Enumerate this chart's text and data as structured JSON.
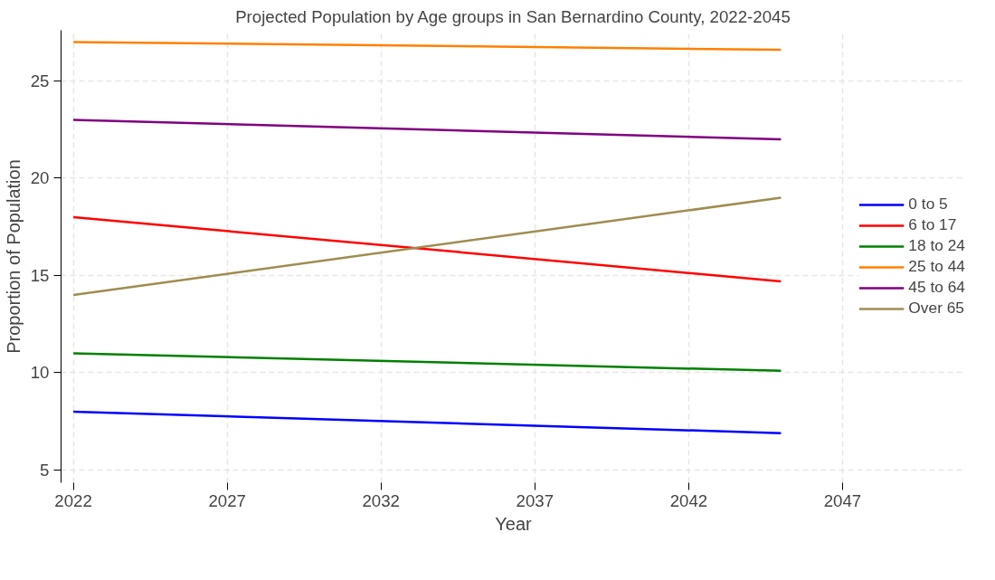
{
  "chart_data": {
    "type": "line",
    "title": "Projected Population by Age groups in San Bernardino County, 2022-2045",
    "xlabel": "Year",
    "ylabel": "Proportion of Population",
    "x": [
      2022,
      2045
    ],
    "series": [
      {
        "name": "0 to 5",
        "color": "#0000ff",
        "values": [
          8.0,
          6.9
        ]
      },
      {
        "name": "6 to 17",
        "color": "#ff0000",
        "values": [
          18.0,
          14.7
        ]
      },
      {
        "name": "18 to 24",
        "color": "#008000",
        "values": [
          11.0,
          10.1
        ]
      },
      {
        "name": "25 to 44",
        "color": "#ff8000",
        "values": [
          27.0,
          26.6
        ]
      },
      {
        "name": "45 to 64",
        "color": "#800080",
        "values": [
          23.0,
          22.0
        ]
      },
      {
        "name": "Over 65",
        "color": "#a08c50",
        "values": [
          14.0,
          19.0
        ]
      }
    ],
    "xlim": [
      2021.6,
      2051.0
    ],
    "xticks": [
      2022,
      2027,
      2032,
      2037,
      2042,
      2047
    ],
    "ylim": [
      4.35,
      27.6
    ],
    "yticks": [
      5,
      10,
      15,
      20,
      25
    ],
    "grid": true,
    "legend": "right",
    "line_style": "solid",
    "marker": "none"
  }
}
